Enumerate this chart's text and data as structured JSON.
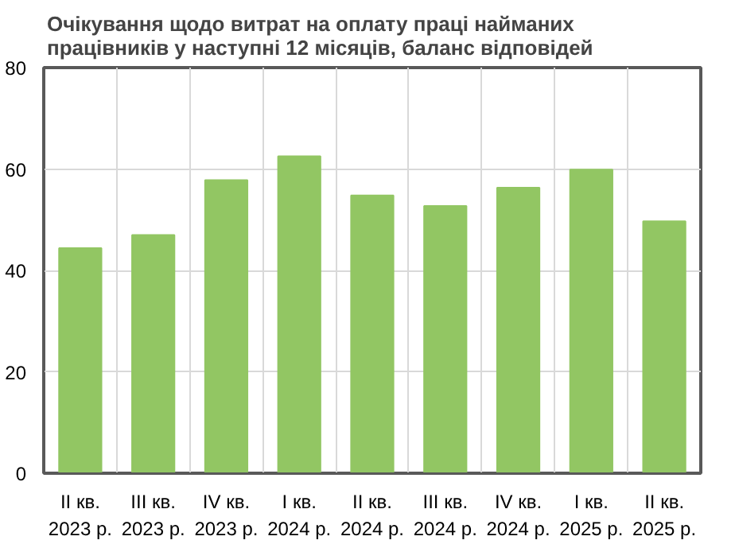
{
  "chart_data": {
    "type": "bar",
    "title": "Очікування щодо витрат на оплату праці найманих працівників у наступні 12 місяців, баланс відповідей",
    "categories": [
      "II кв.\n2023 р.",
      "III кв.\n2023 р.",
      "IV кв.\n2023 р.",
      "I кв.\n2024 р.",
      "II кв.\n2024 р.",
      "III кв.\n2024 р.",
      "IV кв.\n2024 р.",
      "I кв.\n2025 р.",
      "II кв.\n2025 р."
    ],
    "values": [
      44.4,
      47.0,
      57.8,
      62.5,
      54.8,
      52.7,
      56.3,
      59.9,
      49.7
    ],
    "color": "#92c663",
    "ylim": [
      0,
      80
    ],
    "yticks": [
      0,
      20,
      40,
      60,
      80
    ],
    "grid": true
  }
}
